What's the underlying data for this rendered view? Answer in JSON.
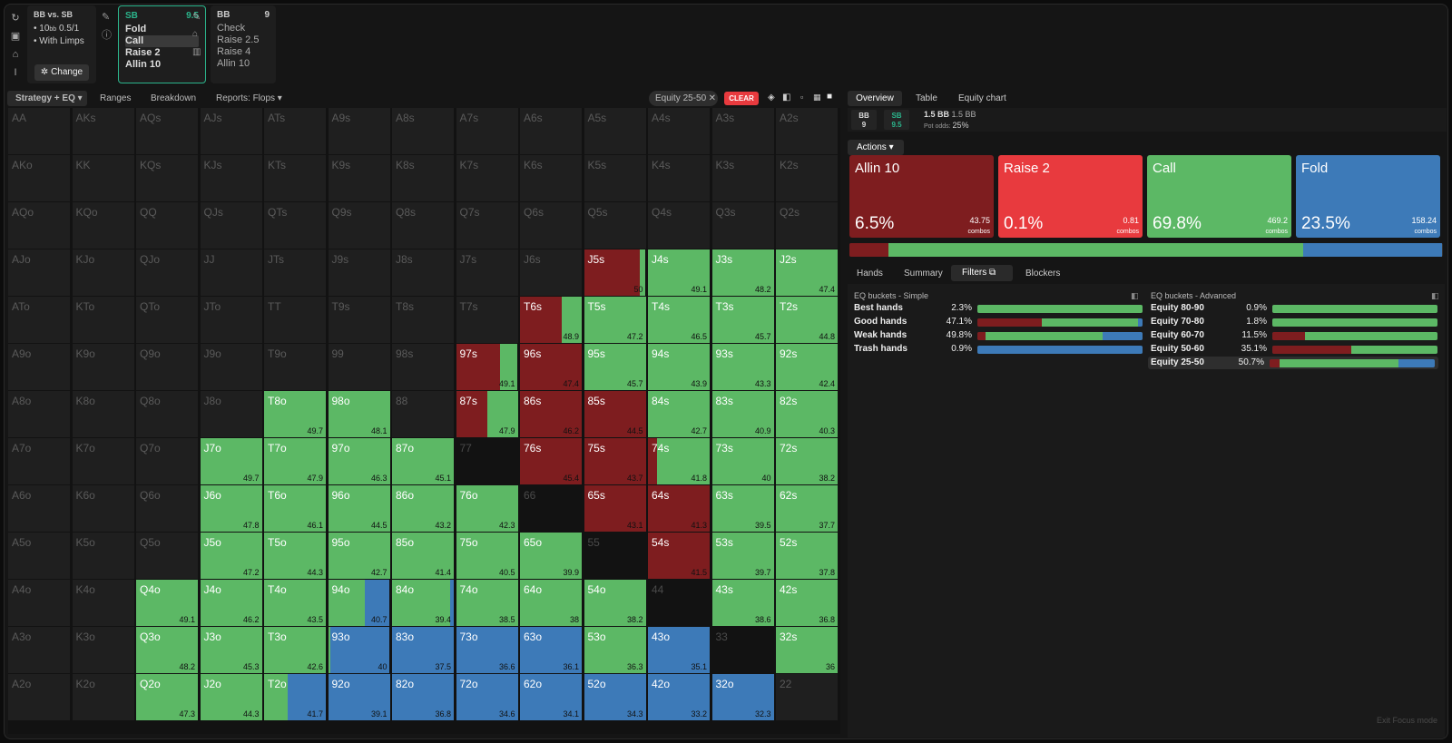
{
  "colors": {
    "allin": "#7e1d1f",
    "raise": "#e83a3e",
    "call": "#5cb865",
    "fold": "#3d7ab8",
    "teal": "#2bb58c"
  },
  "toolbar": {
    "icons": [
      "refresh-icon",
      "save-icon",
      "gamepad-icon",
      "text-cursor-icon"
    ]
  },
  "spot1": {
    "title": "BB vs. SB",
    "stack_prefix": "10",
    "stack_unit": "bb",
    "blinds": "0.5/1",
    "format": "With Limps",
    "change_label": "Change"
  },
  "spot2": {
    "player": "SB",
    "stack": "9.5",
    "actions": [
      "Fold",
      "Call",
      "Raise 2",
      "Allin 10"
    ],
    "selected": "Call"
  },
  "spot3": {
    "player": "BB",
    "stack": "9",
    "actions": [
      "Check",
      "Raise 2.5",
      "Raise 4",
      "Allin 10"
    ]
  },
  "lefttabs": {
    "strategy": "Strategy + EQ",
    "ranges": "Ranges",
    "breakdown": "Breakdown",
    "reports": "Reports: Flops"
  },
  "filterchip": {
    "label": "Equity 25-50",
    "clear": "CLEAR"
  },
  "grid": [
    [
      "AA",
      "AKs",
      "AQs",
      "AJs",
      "ATs",
      "A9s",
      "A8s",
      "A7s",
      "A6s",
      "A5s",
      "A4s",
      "A3s",
      "A2s"
    ],
    [
      "AKo",
      "KK",
      "KQs",
      "KJs",
      "KTs",
      "K9s",
      "K8s",
      "K7s",
      "K6s",
      "K5s",
      "K4s",
      "K3s",
      "K2s"
    ],
    [
      "AQo",
      "KQo",
      "QQ",
      "QJs",
      "QTs",
      "Q9s",
      "Q8s",
      "Q7s",
      "Q6s",
      "Q5s",
      "Q4s",
      "Q3s",
      "Q2s"
    ],
    [
      "AJo",
      "KJo",
      "QJo",
      "JJ",
      "JTs",
      "J9s",
      "J8s",
      "J7s",
      "J6s",
      "J5s",
      "J4s",
      "J3s",
      "J2s"
    ],
    [
      "ATo",
      "KTo",
      "QTo",
      "JTo",
      "TT",
      "T9s",
      "T8s",
      "T7s",
      "T6s",
      "T5s",
      "T4s",
      "T3s",
      "T2s"
    ],
    [
      "A9o",
      "K9o",
      "Q9o",
      "J9o",
      "T9o",
      "99",
      "98s",
      "97s",
      "96s",
      "95s",
      "94s",
      "93s",
      "92s"
    ],
    [
      "A8o",
      "K8o",
      "Q8o",
      "J8o",
      "T8o",
      "98o",
      "88",
      "87s",
      "86s",
      "85s",
      "84s",
      "83s",
      "82s"
    ],
    [
      "A7o",
      "K7o",
      "Q7o",
      "J7o",
      "T7o",
      "97o",
      "87o",
      "77",
      "76s",
      "75s",
      "74s",
      "73s",
      "72s"
    ],
    [
      "A6o",
      "K6o",
      "Q6o",
      "J6o",
      "T6o",
      "96o",
      "86o",
      "76o",
      "66",
      "65s",
      "64s",
      "63s",
      "62s"
    ],
    [
      "A5o",
      "K5o",
      "Q5o",
      "J5o",
      "T5o",
      "95o",
      "85o",
      "75o",
      "65o",
      "55",
      "54s",
      "53s",
      "52s"
    ],
    [
      "A4o",
      "K4o",
      "Q4o",
      "J4o",
      "T4o",
      "94o",
      "84o",
      "74o",
      "64o",
      "54o",
      "44",
      "43s",
      "42s"
    ],
    [
      "A3o",
      "K3o",
      "Q3o",
      "J3o",
      "T3o",
      "93o",
      "83o",
      "73o",
      "63o",
      "53o",
      "43o",
      "33",
      "32s"
    ],
    [
      "A2o",
      "K2o",
      "Q2o",
      "J2o",
      "T2o",
      "92o",
      "82o",
      "72o",
      "62o",
      "52o",
      "42o",
      "32o",
      "22"
    ]
  ],
  "equity": {
    "J5s": "50",
    "J4s": "49.1",
    "J3s": "48.2",
    "J2s": "47.4",
    "T6s": "48.9",
    "T5s": "47.2",
    "T4s": "46.5",
    "T3s": "45.7",
    "T2s": "44.8",
    "97s": "49.1",
    "96s": "47.4",
    "95s": "45.7",
    "94s": "43.9",
    "93s": "43.3",
    "92s": "42.4",
    "T8o": "49.7",
    "98o": "48.1",
    "87s": "47.9",
    "86s": "46.2",
    "85s": "44.5",
    "84s": "42.7",
    "83s": "40.9",
    "82s": "40.3",
    "J7o": "49.7",
    "T7o": "47.9",
    "97o": "46.3",
    "87o": "45.1",
    "76s": "45.4",
    "75s": "43.7",
    "74s": "41.8",
    "73s": "40",
    "72s": "38.2",
    "J6o": "47.8",
    "T6o": "46.1",
    "96o": "44.5",
    "86o": "43.2",
    "76o": "42.3",
    "65s": "43.1",
    "64s": "41.3",
    "63s": "39.5",
    "62s": "37.7",
    "J5o": "47.2",
    "T5o": "44.3",
    "95o": "42.7",
    "85o": "41.4",
    "75o": "40.5",
    "65o": "39.9",
    "54s": "41.5",
    "53s": "39.7",
    "52s": "37.8",
    "Q4o": "49.1",
    "J4o": "46.2",
    "T4o": "43.5",
    "94o": "40.7",
    "84o": "39.4",
    "74o": "38.5",
    "64o": "38",
    "54o": "38.2",
    "43s": "38.6",
    "42s": "36.8",
    "Q3o": "48.2",
    "J3o": "45.3",
    "T3o": "42.6",
    "93o": "40",
    "83o": "37.5",
    "73o": "36.6",
    "63o": "36.1",
    "53o": "36.3",
    "43o": "35.1",
    "32s": "36",
    "Q2o": "47.3",
    "J2o": "44.3",
    "T2o": "41.7",
    "92o": "39.1",
    "82o": "36.8",
    "72o": "34.6",
    "62o": "34.1",
    "52o": "34.3",
    "42o": "33.2",
    "32o": "32.3"
  },
  "mix": {
    "J5s": {
      "allin": 0.9,
      "raise": 0,
      "call": 0.1,
      "fold": 0
    },
    "T6s": {
      "allin": 0.67,
      "raise": 0,
      "call": 0.33,
      "fold": 0
    },
    "97s": {
      "allin": 0.72,
      "raise": 0,
      "call": 0.28,
      "fold": 0
    },
    "87s": {
      "allin": 0.5,
      "raise": 0,
      "call": 0.5,
      "fold": 0
    },
    "74s": {
      "allin": 0.15,
      "raise": 0,
      "call": 0.85,
      "fold": 0
    },
    "96s": {
      "allin": 1,
      "raise": 0,
      "call": 0,
      "fold": 0
    },
    "86s": {
      "allin": 1,
      "raise": 0,
      "call": 0,
      "fold": 0
    },
    "85s": {
      "allin": 1,
      "raise": 0,
      "call": 0,
      "fold": 0
    },
    "76s": {
      "allin": 1,
      "raise": 0,
      "call": 0,
      "fold": 0
    },
    "75s": {
      "allin": 1,
      "raise": 0,
      "call": 0,
      "fold": 0
    },
    "65s": {
      "allin": 1,
      "raise": 0,
      "call": 0,
      "fold": 0
    },
    "64s": {
      "allin": 1,
      "raise": 0,
      "call": 0,
      "fold": 0
    },
    "54s": {
      "allin": 1,
      "raise": 0,
      "call": 0,
      "fold": 0
    },
    "94o": {
      "allin": 0,
      "raise": 0,
      "call": 0.6,
      "fold": 0.4
    },
    "84o": {
      "allin": 0,
      "raise": 0,
      "call": 0.94,
      "fold": 0.06
    },
    "93o": {
      "allin": 0,
      "raise": 0,
      "call": 0.04,
      "fold": 0.96
    },
    "T2o": {
      "allin": 0,
      "raise": 0,
      "call": 0.38,
      "fold": 0.62
    },
    "83o": {
      "allin": 0,
      "raise": 0,
      "call": 0,
      "fold": 1
    },
    "73o": {
      "allin": 0,
      "raise": 0,
      "call": 0,
      "fold": 1
    },
    "63o": {
      "allin": 0,
      "raise": 0,
      "call": 0,
      "fold": 1
    },
    "43o": {
      "allin": 0,
      "raise": 0,
      "call": 0,
      "fold": 1
    },
    "92o": {
      "allin": 0,
      "raise": 0,
      "call": 0,
      "fold": 1
    },
    "82o": {
      "allin": 0,
      "raise": 0,
      "call": 0,
      "fold": 1
    },
    "72o": {
      "allin": 0,
      "raise": 0,
      "call": 0,
      "fold": 1
    },
    "62o": {
      "allin": 0,
      "raise": 0,
      "call": 0,
      "fold": 1
    },
    "52o": {
      "allin": 0,
      "raise": 0,
      "call": 0,
      "fold": 1
    },
    "42o": {
      "allin": 0,
      "raise": 0,
      "call": 0,
      "fold": 1
    },
    "32o": {
      "allin": 0,
      "raise": 0,
      "call": 0,
      "fold": 1
    }
  },
  "black": [
    "77",
    "66",
    "55",
    "44",
    "33"
  ],
  "righttabs": {
    "overview": "Overview",
    "table": "Table",
    "equity_chart": "Equity chart"
  },
  "players": {
    "bb": "BB",
    "bb_stack": "9",
    "sb": "SB",
    "sb_stack": "9.5",
    "pot": "1.5 BB",
    "pot2": "1.5 BB",
    "pot_odds_label": "Pot odds:",
    "pot_odds": "25%"
  },
  "actions_label": "Actions",
  "actions": [
    {
      "name": "Allin 10",
      "pct": "6.5%",
      "combos": "43.75",
      "frac": 0.065
    },
    {
      "name": "Raise 2",
      "pct": "0.1%",
      "combos": "0.81",
      "frac": 0.001
    },
    {
      "name": "Call",
      "pct": "69.8%",
      "combos": "469.2",
      "frac": 0.698
    },
    {
      "name": "Fold",
      "pct": "23.5%",
      "combos": "158.24",
      "frac": 0.235
    }
  ],
  "combos_word": "combos",
  "subtabs": {
    "hands": "Hands",
    "summary": "Summary",
    "filters": "Filters",
    "blockers": "Blockers"
  },
  "simple": {
    "title": "EQ buckets - Simple",
    "rows": [
      {
        "label": "Best hands",
        "pct": "2.3%",
        "mix": [
          0,
          0,
          1,
          0
        ]
      },
      {
        "label": "Good hands",
        "pct": "47.1%",
        "mix": [
          0.39,
          0,
          0.58,
          0.03
        ]
      },
      {
        "label": "Weak hands",
        "pct": "49.8%",
        "mix": [
          0.05,
          0,
          0.71,
          0.24
        ]
      },
      {
        "label": "Trash hands",
        "pct": "0.9%",
        "mix": [
          0,
          0,
          0,
          1
        ]
      }
    ]
  },
  "advanced": {
    "title": "EQ buckets - Advanced",
    "rows": [
      {
        "label": "Equity 80-90",
        "pct": "0.9%",
        "mix": [
          0,
          0,
          1,
          0
        ]
      },
      {
        "label": "Equity 70-80",
        "pct": "1.8%",
        "mix": [
          0,
          0,
          1,
          0
        ]
      },
      {
        "label": "Equity 60-70",
        "pct": "11.5%",
        "mix": [
          0.2,
          0,
          0.8,
          0
        ]
      },
      {
        "label": "Equity 50-60",
        "pct": "35.1%",
        "mix": [
          0.48,
          0,
          0.52,
          0
        ]
      },
      {
        "label": "Equity 25-50",
        "pct": "50.7%",
        "mix": [
          0.06,
          0,
          0.72,
          0.22
        ]
      }
    ]
  },
  "exit": "Exit Focus mode"
}
